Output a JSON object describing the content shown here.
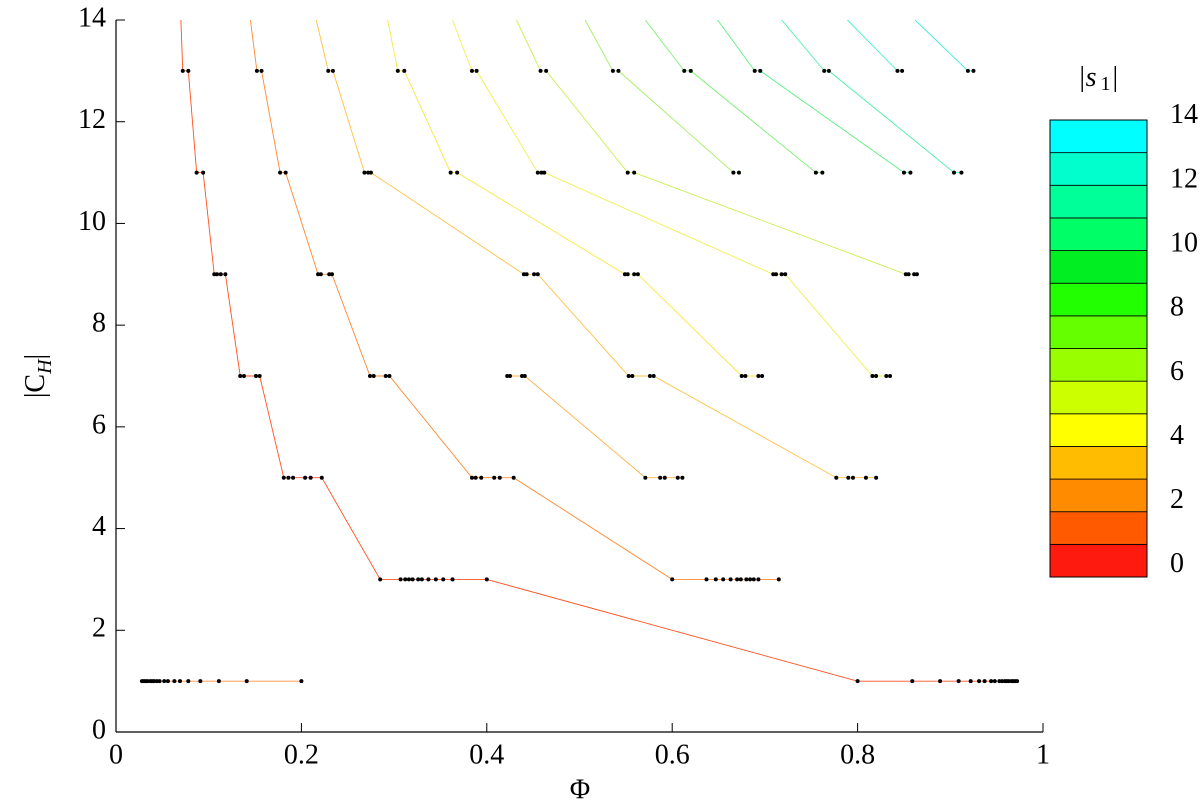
{
  "chart_data": {
    "type": "line",
    "xlabel": "Φ",
    "ylabel": [
      "|C",
      "H",
      "|"
    ],
    "xlim": [
      0,
      1
    ],
    "xticks": [
      0,
      0.2,
      0.4,
      0.6,
      0.8,
      1
    ],
    "ylim": [
      0,
      14
    ],
    "yticks": [
      0,
      2,
      4,
      6,
      8,
      10,
      12,
      14
    ],
    "marker_color": "#000000",
    "point_rows": [
      {
        "y": 1,
        "x": [
          0.028,
          0.03,
          0.032,
          0.034,
          0.037,
          0.039,
          0.041,
          0.044,
          0.047,
          0.052,
          0.056,
          0.063,
          0.069,
          0.078,
          0.091,
          0.111,
          0.141,
          0.2,
          0.8,
          0.859,
          0.889,
          0.909,
          0.922,
          0.931,
          0.937,
          0.944,
          0.948,
          0.953,
          0.956,
          0.959,
          0.961,
          0.963,
          0.966,
          0.968,
          0.97,
          0.972
        ]
      },
      {
        "y": 3,
        "x": [
          0.285,
          0.307,
          0.312,
          0.316,
          0.32,
          0.326,
          0.33,
          0.337,
          0.345,
          0.353,
          0.363,
          0.4,
          0.6,
          0.637,
          0.647,
          0.655,
          0.663,
          0.67,
          0.674,
          0.68,
          0.684,
          0.688,
          0.693,
          0.715
        ]
      },
      {
        "y": 5,
        "x": [
          0.181,
          0.186,
          0.191,
          0.204,
          0.21,
          0.222,
          0.384,
          0.388,
          0.394,
          0.408,
          0.414,
          0.429,
          0.571,
          0.587,
          0.592,
          0.606,
          0.611,
          0.777,
          0.79,
          0.795,
          0.809,
          0.82
        ]
      },
      {
        "y": 7,
        "x": [
          0.134,
          0.138,
          0.151,
          0.155,
          0.274,
          0.278,
          0.291,
          0.295,
          0.422,
          0.425,
          0.438,
          0.441,
          0.553,
          0.557,
          0.576,
          0.58,
          0.675,
          0.679,
          0.693,
          0.697,
          0.816,
          0.82,
          0.831,
          0.835
        ]
      },
      {
        "y": 9,
        "x": [
          0.106,
          0.109,
          0.113,
          0.118,
          0.218,
          0.221,
          0.23,
          0.233,
          0.44,
          0.443,
          0.451,
          0.455,
          0.549,
          0.552,
          0.559,
          0.563,
          0.709,
          0.712,
          0.718,
          0.722,
          0.852,
          0.855,
          0.861,
          0.864
        ]
      },
      {
        "y": 11,
        "x": [
          0.087,
          0.094,
          0.177,
          0.183,
          0.268,
          0.272,
          0.275,
          0.361,
          0.368,
          0.455,
          0.459,
          0.462,
          0.552,
          0.559,
          0.666,
          0.672,
          0.755,
          0.762,
          0.85,
          0.857,
          0.904,
          0.912
        ]
      },
      {
        "y": 13,
        "x": [
          0.072,
          0.078,
          0.152,
          0.157,
          0.229,
          0.234,
          0.304,
          0.311,
          0.384,
          0.389,
          0.458,
          0.464,
          0.536,
          0.542,
          0.613,
          0.62,
          0.689,
          0.695,
          0.764,
          0.769,
          0.843,
          0.848,
          0.919,
          0.925
        ]
      }
    ],
    "lines": [
      {
        "color": "#ff9040",
        "x": [
          0.028,
          0.2
        ],
        "y": [
          1,
          1
        ]
      },
      {
        "color": "#ff5020",
        "x": [
          0.972,
          0.8,
          0.4,
          0.285,
          0.222,
          0.181,
          0.155,
          0.134,
          0.118,
          0.106,
          0.094,
          0.087,
          0.078,
          0.072,
          0.07
        ],
        "y": [
          1,
          1,
          3,
          3,
          5,
          5,
          7,
          7,
          9,
          9,
          11,
          11,
          13,
          13,
          14
        ]
      },
      {
        "color": "#ff8830",
        "x": [
          0.715,
          0.6,
          0.429,
          0.384,
          0.295,
          0.274,
          0.233,
          0.218,
          0.183,
          0.177,
          0.157,
          0.152,
          0.145
        ],
        "y": [
          3,
          3,
          5,
          5,
          7,
          7,
          9,
          9,
          11,
          11,
          13,
          13,
          14
        ]
      },
      {
        "color": "#ffb040",
        "x": [
          0.611,
          0.571,
          0.441,
          0.422
        ],
        "y": [
          5,
          5,
          7,
          7
        ]
      },
      {
        "color": "#ffc040",
        "x": [
          0.82,
          0.777,
          0.58,
          0.553,
          0.455,
          0.44,
          0.275,
          0.268,
          0.234,
          0.229,
          0.216
        ],
        "y": [
          5,
          5,
          7,
          7,
          9,
          9,
          11,
          11,
          13,
          13,
          14
        ]
      },
      {
        "color": "#f8e840",
        "x": [
          0.697,
          0.675,
          0.563,
          0.549,
          0.368,
          0.361,
          0.311,
          0.304,
          0.293
        ],
        "y": [
          7,
          7,
          9,
          9,
          11,
          11,
          13,
          13,
          14
        ]
      },
      {
        "color": "#eef050",
        "x": [
          0.835,
          0.816,
          0.722,
          0.709,
          0.462,
          0.455,
          0.389,
          0.384,
          0.363
        ],
        "y": [
          7,
          7,
          9,
          9,
          11,
          11,
          13,
          13,
          14
        ]
      },
      {
        "color": "#c8f050",
        "x": [
          0.864,
          0.852,
          0.559,
          0.552,
          0.464,
          0.458,
          0.432
        ],
        "y": [
          9,
          9,
          11,
          11,
          13,
          13,
          14
        ]
      },
      {
        "color": "#a0f060",
        "x": [
          0.672,
          0.666,
          0.542,
          0.536,
          0.506
        ],
        "y": [
          11,
          11,
          13,
          13,
          14
        ]
      },
      {
        "color": "#78f070",
        "x": [
          0.762,
          0.755,
          0.62,
          0.613,
          0.571
        ],
        "y": [
          11,
          11,
          13,
          13,
          14
        ]
      },
      {
        "color": "#58f080",
        "x": [
          0.857,
          0.85,
          0.695,
          0.689,
          0.649
        ],
        "y": [
          11,
          11,
          13,
          13,
          14
        ]
      },
      {
        "color": "#48f0a8",
        "x": [
          0.912,
          0.904,
          0.769,
          0.764,
          0.718
        ],
        "y": [
          11,
          11,
          13,
          13,
          14
        ]
      },
      {
        "color": "#48f0c8",
        "x": [
          0.848,
          0.843,
          0.789
        ],
        "y": [
          13,
          13,
          14
        ]
      },
      {
        "color": "#40e8e0",
        "x": [
          0.925,
          0.919,
          0.862
        ],
        "y": [
          13,
          13,
          14
        ]
      }
    ],
    "colorbar": {
      "label": [
        "|s",
        "1",
        "|"
      ],
      "lim": [
        -0.35,
        13.9
      ],
      "ticks": [
        0,
        2,
        4,
        6,
        8,
        10,
        12,
        14
      ],
      "colors": [
        "#ff1a10",
        "#ff5a00",
        "#ff8c00",
        "#ffbc00",
        "#ffff00",
        "#ccff00",
        "#99ff00",
        "#66ff00",
        "#22ff00",
        "#00ee22",
        "#00ff66",
        "#00ff99",
        "#00ffcc",
        "#00ffff"
      ]
    }
  }
}
